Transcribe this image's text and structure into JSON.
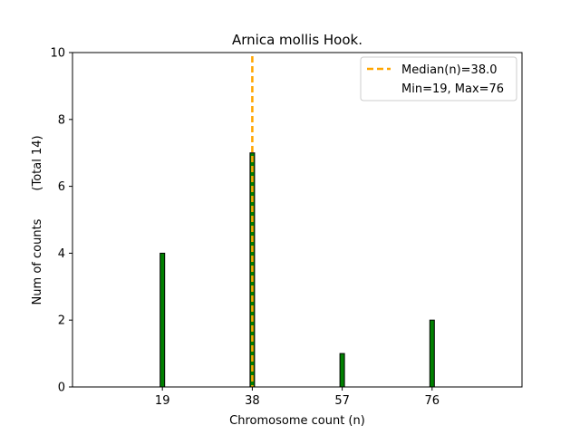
{
  "chart_data": {
    "type": "bar",
    "title": "Arnica mollis Hook.",
    "xlabel": "Chromosome count (n)",
    "ylabel": "Num of counts",
    "ylabel_note": "(Total 14)",
    "xlim": [
      0,
      95
    ],
    "ylim": [
      0,
      10
    ],
    "xticks": [
      19,
      38,
      57,
      76
    ],
    "yticks": [
      0,
      2,
      4,
      6,
      8,
      10
    ],
    "bar_color": "#008000",
    "bar_edge_color": "#000000",
    "bars": [
      {
        "x": 19,
        "count": 4
      },
      {
        "x": 38,
        "count": 7
      },
      {
        "x": 57,
        "count": 1
      },
      {
        "x": 76,
        "count": 2
      }
    ],
    "median": {
      "value": 38.0,
      "color": "#FFA500"
    },
    "legend": {
      "position": "top-right",
      "entries": [
        "Median(n)=38.0",
        "Min=19, Max=76"
      ]
    },
    "grid": false
  }
}
